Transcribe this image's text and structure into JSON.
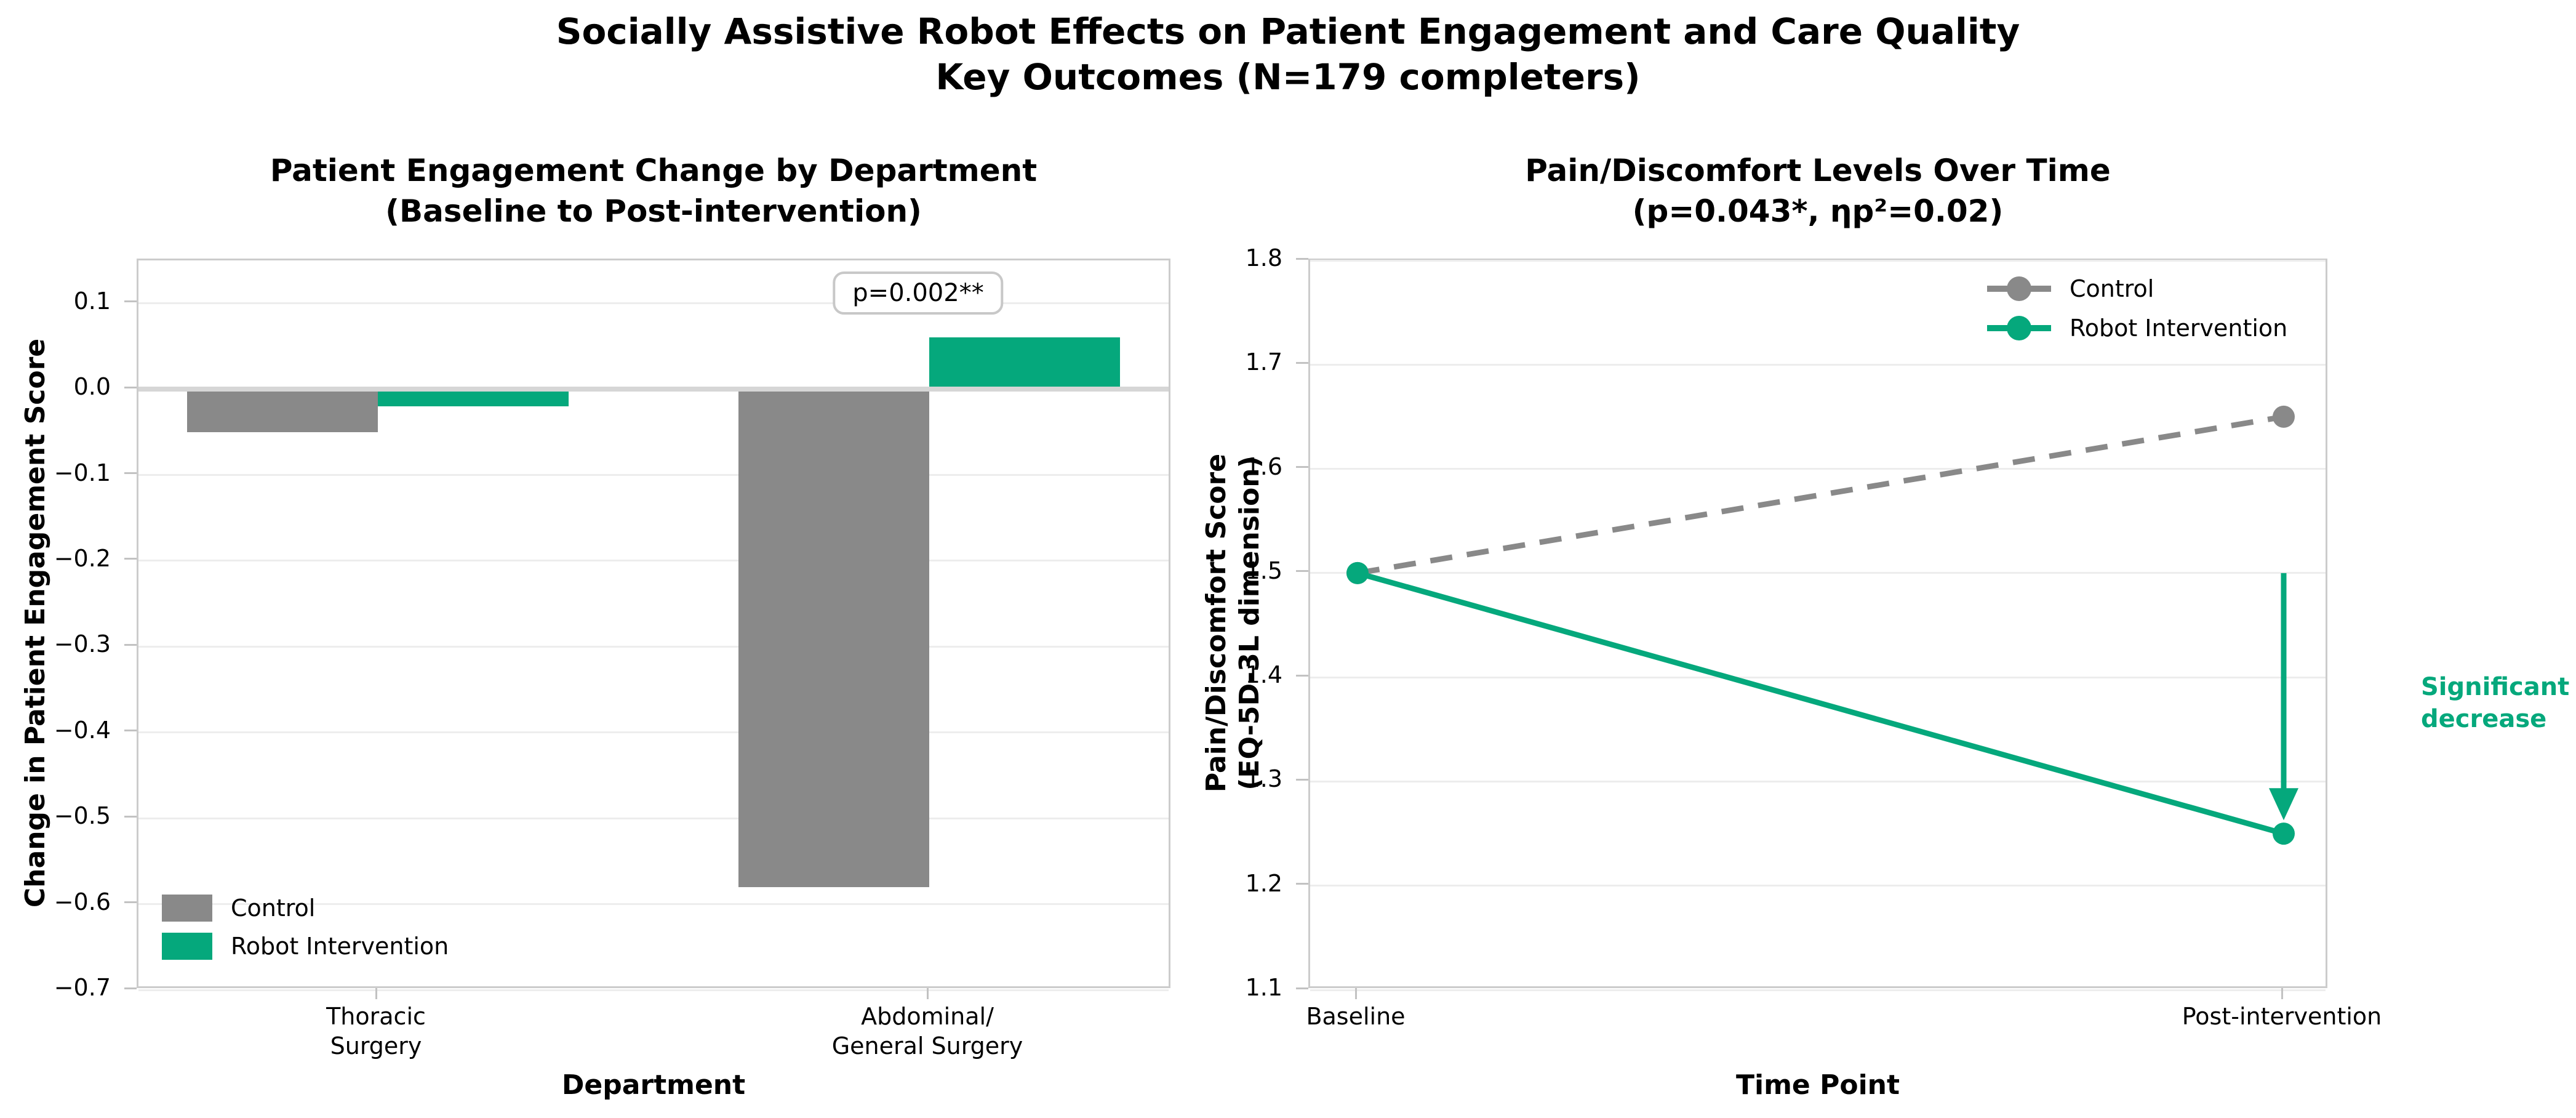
{
  "suptitle": "Socially Assistive Robot Effects on Patient Engagement and Care Quality\nKey Outcomes (N=179 completers)",
  "colors": {
    "control_gray": "#898989",
    "robot_green": "#05a87c",
    "grid": "#ededed",
    "spine": "#cccccc",
    "zero_line": "#d6d6d6",
    "tick": "#c2c2c2",
    "annotation_border": "#c8c8c8",
    "text": "#000000"
  },
  "chart_data": [
    {
      "type": "bar",
      "title": "Patient Engagement Change by Department\n(Baseline to Post-intervention)",
      "xlabel": "Department",
      "ylabel": "Change in Patient Engagement Score",
      "categories": [
        "Thoracic\nSurgery",
        "Abdominal/\nGeneral Surgery"
      ],
      "series": [
        {
          "name": "Control",
          "color_key": "control_gray",
          "values": [
            -0.05,
            -0.58
          ]
        },
        {
          "name": "Robot Intervention",
          "color_key": "robot_green",
          "values": [
            -0.02,
            0.06
          ]
        }
      ],
      "yticks": [
        0.1,
        0.0,
        -0.1,
        -0.2,
        -0.3,
        -0.4,
        -0.5,
        -0.6,
        -0.7
      ],
      "ylim": [
        -0.7,
        0.15
      ],
      "grid": true,
      "legend_position": "lower left",
      "annotation": "p=0.002**"
    },
    {
      "type": "line",
      "title": "Pain/Discomfort Levels Over Time\n(p=0.043*, ηp²=0.02)",
      "xlabel": "Time Point",
      "ylabel": "Pain/Discomfort Score\n(EQ-5D-3L dimension)",
      "x": [
        "Baseline",
        "Post-intervention"
      ],
      "series": [
        {
          "name": "Control",
          "color_key": "control_gray",
          "style": "dashed",
          "marker": "circle",
          "values": [
            1.5,
            1.65
          ]
        },
        {
          "name": "Robot Intervention",
          "color_key": "robot_green",
          "style": "solid",
          "marker": "circle",
          "values": [
            1.5,
            1.25
          ]
        }
      ],
      "yticks": [
        1.8,
        1.7,
        1.6,
        1.5,
        1.4,
        1.3,
        1.2,
        1.1
      ],
      "ylim": [
        1.1,
        1.8
      ],
      "grid": true,
      "legend_position": "upper right",
      "annotation": "Significant\ndecrease",
      "arrow": {
        "at_x": "Post-intervention",
        "from_y": 1.5,
        "to_y": 1.27,
        "direction": "down"
      }
    }
  ]
}
